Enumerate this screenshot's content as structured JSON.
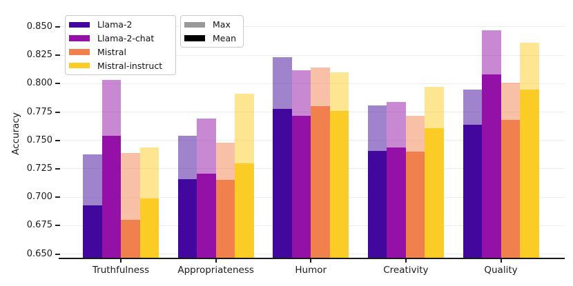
{
  "figure": {
    "background": "#ffffff"
  },
  "chart_data": {
    "type": "bar",
    "title": "",
    "xlabel": "",
    "ylabel": "Accuracy",
    "categories": [
      "Truthfulness",
      "Appropriateness",
      "Humor",
      "Creativity",
      "Quality"
    ],
    "ylim": [
      0.6455,
      0.8688
    ],
    "yticks": [
      0.65,
      0.675,
      0.7,
      0.725,
      0.75,
      0.775,
      0.8,
      0.825,
      0.85
    ],
    "grid": "horizontal-light-gray",
    "legend_position": "upper-left",
    "bar_style": {
      "max_overlay_alpha": 0.5,
      "mean_solid": true
    },
    "series": [
      {
        "name": "Llama-2",
        "color": "#42079C",
        "mean": [
          0.693,
          0.716,
          0.778,
          0.741,
          0.764
        ],
        "max": [
          0.738,
          0.754,
          0.823,
          0.781,
          0.795
        ]
      },
      {
        "name": "Llama-2-chat",
        "color": "#9311A6",
        "mean": [
          0.754,
          0.721,
          0.772,
          0.744,
          0.808
        ],
        "max": [
          0.803,
          0.769,
          0.812,
          0.784,
          0.847
        ]
      },
      {
        "name": "Mistral",
        "color": "#F0814F",
        "mean": [
          0.68,
          0.715,
          0.78,
          0.74,
          0.768
        ],
        "max": [
          0.739,
          0.748,
          0.814,
          0.772,
          0.801
        ]
      },
      {
        "name": "Mistral-instruct",
        "color": "#FCCC26",
        "mean": [
          0.699,
          0.73,
          0.776,
          0.761,
          0.795
        ],
        "max": [
          0.744,
          0.791,
          0.81,
          0.797,
          0.836
        ]
      }
    ],
    "style_legend": [
      {
        "label": "Max",
        "color": "#999999"
      },
      {
        "label": "Mean",
        "color": "#000000"
      }
    ]
  }
}
